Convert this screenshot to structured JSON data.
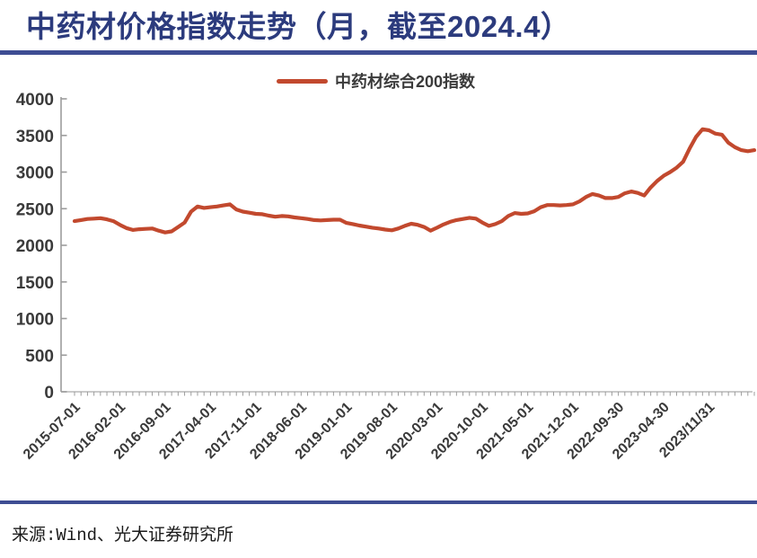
{
  "header": {
    "title": "中药材价格指数走势（月，截至2024.4）",
    "title_color": "#2c3b7d",
    "rule_color": "#3e4d93"
  },
  "source": {
    "text": "来源:Wind、光大证券研究所"
  },
  "chart_data": {
    "type": "line",
    "title": "中药材价格指数走势（月，截至2024.4）",
    "xlabel": "",
    "ylabel": "",
    "ylim": [
      0,
      4000
    ],
    "y_tick_step": 500,
    "y_tick_labels": [
      "0",
      "500",
      "1000",
      "1500",
      "2000",
      "2500",
      "3000",
      "3500",
      "4000"
    ],
    "grid": false,
    "legend_position": "top-center",
    "legend_entries": [
      "中药材综合200指数"
    ],
    "x_tick_labels": [
      "2015-07-01",
      "2016-02-01",
      "2016-09-01",
      "2017-04-01",
      "2017-11-01",
      "2018-06-01",
      "2019-01-01",
      "2019-08-01",
      "2020-03-01",
      "2020-10-01",
      "2021-05-01",
      "2021-12-01",
      "2022-09-30",
      "2023-04-30",
      "2023/11/31"
    ],
    "x_label_every": 7,
    "axis_color": "#9c9c9c",
    "tick_text_color": "#3a3a3a",
    "series": [
      {
        "name": "中药材综合200指数",
        "color": "#c2492e",
        "values": [
          2330,
          2345,
          2360,
          2365,
          2370,
          2355,
          2330,
          2280,
          2235,
          2210,
          2220,
          2225,
          2230,
          2200,
          2175,
          2190,
          2250,
          2310,
          2460,
          2530,
          2510,
          2520,
          2530,
          2545,
          2560,
          2490,
          2460,
          2445,
          2430,
          2425,
          2405,
          2390,
          2400,
          2395,
          2380,
          2370,
          2360,
          2345,
          2340,
          2345,
          2350,
          2350,
          2305,
          2290,
          2270,
          2255,
          2240,
          2230,
          2215,
          2205,
          2230,
          2265,
          2295,
          2280,
          2250,
          2200,
          2240,
          2285,
          2320,
          2345,
          2360,
          2375,
          2365,
          2310,
          2265,
          2290,
          2330,
          2400,
          2440,
          2430,
          2435,
          2465,
          2520,
          2550,
          2550,
          2545,
          2550,
          2560,
          2600,
          2660,
          2700,
          2680,
          2645,
          2645,
          2660,
          2710,
          2735,
          2715,
          2680,
          2790,
          2880,
          2950,
          3000,
          3060,
          3140,
          3320,
          3480,
          3585,
          3570,
          3525,
          3510,
          3400,
          3340,
          3300,
          3285,
          3300
        ]
      }
    ]
  }
}
